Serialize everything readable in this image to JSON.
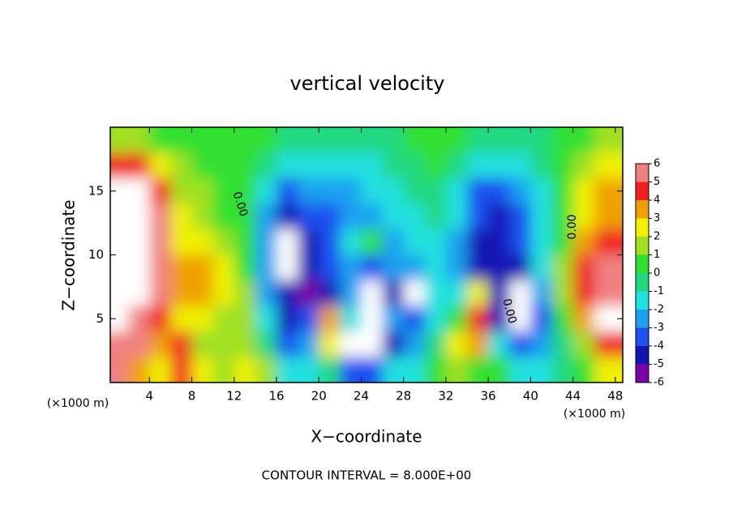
{
  "chart_data": {
    "type": "heatmap",
    "title": "vertical velocity",
    "x_label": "X−coordinate",
    "y_label": "Z−coordinate",
    "x_unit": "(×1000 m)",
    "footer": "CONTOUR INTERVAL = 8.000E+00",
    "contour_labels": [
      "0.00",
      "0.00",
      "0.00"
    ],
    "xlim": [
      0.3,
      48.7
    ],
    "ylim": [
      0,
      20
    ],
    "xticks": [
      4,
      8,
      12,
      16,
      20,
      24,
      28,
      32,
      36,
      40,
      44,
      48
    ],
    "yticks": [
      5,
      10,
      15
    ],
    "x": [
      1,
      3,
      5,
      7,
      9,
      11,
      13,
      15,
      17,
      19,
      21,
      23,
      25,
      27,
      29,
      31,
      33,
      35,
      37,
      39,
      41,
      43,
      45,
      47
    ],
    "z": [
      19,
      17,
      15,
      13,
      11,
      9,
      7,
      5,
      3,
      1
    ],
    "values": [
      [
        1,
        1,
        0,
        0,
        0,
        0,
        0,
        0,
        -1,
        -1,
        -1,
        -1,
        -1,
        -1,
        0,
        0,
        0,
        -1,
        -1,
        -1,
        -1,
        0,
        0,
        1
      ],
      [
        4,
        4,
        2,
        1,
        0,
        0,
        0,
        -1,
        -2,
        -2,
        -2,
        -2,
        -2,
        -1,
        -1,
        0,
        -1,
        -2,
        -2,
        -2,
        -1,
        0,
        1,
        2
      ],
      [
        7,
        7,
        4,
        1,
        1,
        0,
        0,
        -2,
        -4,
        -3,
        -3,
        -3,
        -2,
        -2,
        -1,
        -1,
        -2,
        -4,
        -4,
        -3,
        -2,
        0,
        2,
        3
      ],
      [
        7,
        7,
        5,
        2,
        1,
        0,
        0,
        -3,
        -5,
        -4,
        -4,
        -3,
        -3,
        -2,
        -2,
        -1,
        -2,
        -4,
        -5,
        -4,
        -2,
        0,
        2,
        3
      ],
      [
        7,
        7,
        5,
        2,
        2,
        1,
        0,
        -3,
        -7,
        -5,
        -4,
        -2,
        0,
        -3,
        -2,
        -2,
        -3,
        -5,
        -5,
        -4,
        -2,
        0,
        3,
        4
      ],
      [
        7,
        7,
        5,
        3,
        3,
        2,
        0,
        -3,
        -7,
        -5,
        -4,
        -3,
        -4,
        -3,
        -3,
        -2,
        -3,
        -5,
        -5,
        -5,
        -2,
        1,
        4,
        5
      ],
      [
        7,
        7,
        5,
        3,
        3,
        2,
        1,
        -3,
        -5,
        -6,
        -5,
        -3,
        -7,
        -5,
        -7,
        -2,
        -2,
        2,
        -5,
        -7,
        -3,
        1,
        4,
        6
      ],
      [
        7,
        6,
        4,
        2,
        2,
        1,
        1,
        -2,
        -5,
        -4,
        3,
        -2,
        -7,
        -3,
        -4,
        -2,
        0,
        4,
        -5,
        -7,
        -4,
        0,
        3,
        7
      ],
      [
        6,
        5,
        3,
        4,
        1,
        1,
        1,
        -1,
        -4,
        -3,
        2,
        -7,
        -7,
        -5,
        -3,
        -1,
        2,
        3,
        -2,
        -4,
        -3,
        -1,
        1,
        4
      ],
      [
        5,
        3,
        2,
        4,
        2,
        1,
        2,
        1,
        -2,
        -2,
        -1,
        -4,
        -4,
        -2,
        -2,
        0,
        1,
        0,
        0,
        -2,
        -2,
        -1,
        0,
        2
      ]
    ],
    "colorbar": {
      "levels": [
        -6,
        -5,
        -4,
        -3,
        -2,
        -1,
        0,
        1,
        2,
        3,
        4,
        5,
        6
      ],
      "colors": [
        "#7a00a8",
        "#1414b4",
        "#1e50f0",
        "#1ea0f0",
        "#20e0e0",
        "#20d880",
        "#30e030",
        "#a0e020",
        "#f0f000",
        "#f0a000",
        "#f02020",
        "#f08080"
      ],
      "out_of_range_color": "#ffffff"
    }
  }
}
